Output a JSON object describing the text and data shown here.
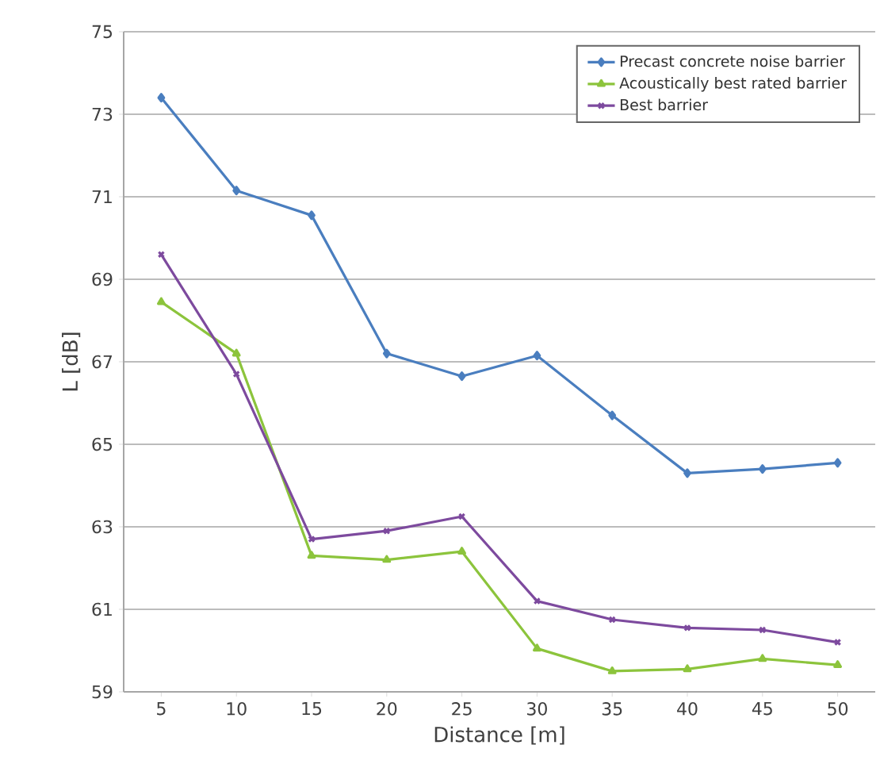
{
  "chart_data": {
    "type": "line",
    "xlabel": "Distance [m]",
    "ylabel": "L [dB]",
    "categories": [
      "5",
      "10",
      "15",
      "20",
      "25",
      "30",
      "35",
      "40",
      "45",
      "50"
    ],
    "ylim": [
      59,
      75
    ],
    "yticks": [
      59,
      61,
      63,
      65,
      67,
      69,
      71,
      73,
      75
    ],
    "grid": "y",
    "legend": "top right",
    "line_style": "solid",
    "series": [
      {
        "name": "Precast concrete noise barrier",
        "color": "#4a7ebf",
        "marker": "diamond",
        "values": [
          73.4,
          71.15,
          70.55,
          67.2,
          66.65,
          67.15,
          65.7,
          64.3,
          64.4,
          64.55
        ]
      },
      {
        "name": "Acoustically best rated barrier",
        "color": "#8cc43c",
        "marker": "triangle",
        "values": [
          68.45,
          67.2,
          62.3,
          62.2,
          62.4,
          60.05,
          59.5,
          59.55,
          59.8,
          59.65
        ]
      },
      {
        "name": "Best barrier",
        "color": "#7d4a9e",
        "marker": "cross",
        "values": [
          69.6,
          66.7,
          62.7,
          62.9,
          63.25,
          61.2,
          60.75,
          60.55,
          60.5,
          60.2
        ]
      }
    ]
  }
}
